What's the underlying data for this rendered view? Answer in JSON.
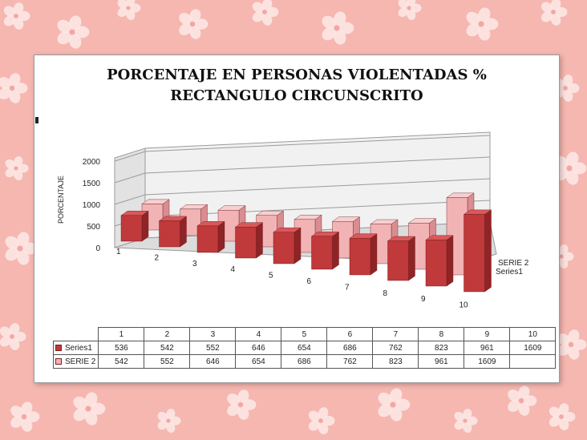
{
  "chart_data": {
    "type": "bar",
    "title": [
      "PORCENTAJE EN PERSONAS VIOLENTADAS %",
      "RECTANGULO  CIRCUNSCRITO"
    ],
    "ylabel": "PORCENTAJE",
    "categories": [
      "1",
      "2",
      "3",
      "4",
      "5",
      "6",
      "7",
      "8",
      "9",
      "10"
    ],
    "yticks": [
      "2000",
      "1500",
      "1000",
      "500",
      "0"
    ],
    "ylim": [
      0,
      2000
    ],
    "series": [
      {
        "name": "Series1",
        "values": [
          536,
          542,
          552,
          646,
          654,
          686,
          762,
          823,
          961,
          1609
        ]
      },
      {
        "name": "SERIE 2",
        "values": [
          542,
          552,
          646,
          654,
          686,
          762,
          823,
          961,
          1609,
          null
        ]
      }
    ],
    "depth_labels": [
      "SERIE 2",
      "Series1"
    ],
    "grid": true,
    "data_table": {
      "header": [
        "1",
        "2",
        "3",
        "4",
        "5",
        "6",
        "7",
        "8",
        "9",
        "10"
      ],
      "rows": [
        {
          "label": "Series1",
          "cells": [
            "536",
            "542",
            "552",
            "646",
            "654",
            "686",
            "762",
            "823",
            "961",
            "1609"
          ]
        },
        {
          "label": "SERIE 2",
          "cells": [
            "542",
            "552",
            "646",
            "654",
            "686",
            "762",
            "823",
            "961",
            "1609",
            ""
          ]
        }
      ]
    },
    "colors": {
      "series1": "#c0393b",
      "series2": "#f2b3b5",
      "background": "#f6b7b1"
    }
  }
}
